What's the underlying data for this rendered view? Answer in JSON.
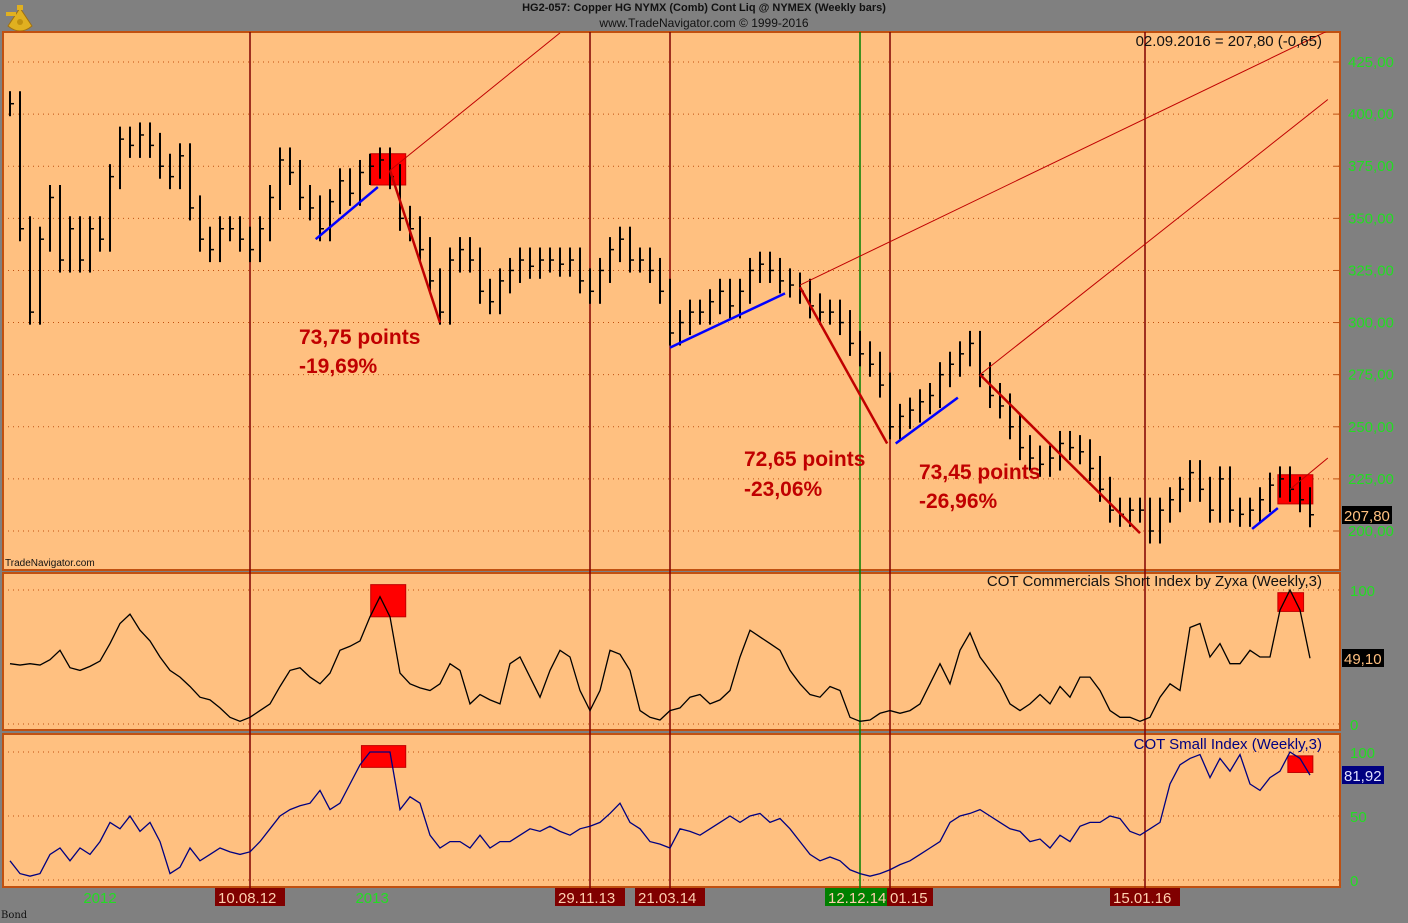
{
  "header": {
    "title": "HG2-057:  Copper HG NYMX (Comb) Cont Liq @ NYMEX  (Weekly bars)",
    "subtitle": "www.TradeNavigator.com © 1999-2016",
    "last_quote": "02.09.2016 = 207,80 (-0,65)",
    "watermark": "TradeNavigator.com",
    "footer": "Bond"
  },
  "colors": {
    "background": "#808080",
    "plot": "#FFC080",
    "frame": "#C05010",
    "axis_text": "#22DD22",
    "annotation": "#C00000",
    "vline": "#800000",
    "vline_green": "#008000",
    "trend_up": "#0000FF",
    "trend_down": "#C00000",
    "cot_small": "#000080"
  },
  "chart_data": [
    {
      "type": "ohlc-bar",
      "panel": "price",
      "last_bar_date": "02.09.2016",
      "bar_interval": "biweekly sample of weekly bars",
      "closes": [
        405,
        345,
        305,
        340,
        360,
        330,
        345,
        330,
        345,
        340,
        370,
        388,
        385,
        390,
        385,
        375,
        370,
        380,
        355,
        340,
        335,
        345,
        345,
        340,
        335,
        345,
        360,
        378,
        372,
        360,
        355,
        345,
        358,
        368,
        362,
        372,
        375,
        378,
        370,
        350,
        345,
        335,
        320,
        305,
        330,
        335,
        330,
        315,
        310,
        320,
        325,
        330,
        327,
        330,
        330,
        328,
        330,
        320,
        315,
        325,
        335,
        340,
        330,
        330,
        325,
        315,
        295,
        300,
        305,
        305,
        310,
        315,
        308,
        315,
        325,
        328,
        325,
        320,
        318,
        315,
        308,
        305,
        305,
        300,
        290,
        285,
        280,
        270,
        250,
        255,
        258,
        262,
        265,
        275,
        280,
        285,
        290,
        275,
        265,
        260,
        250,
        240,
        235,
        232,
        235,
        242,
        240,
        238,
        230,
        220,
        210,
        208,
        210,
        210,
        200,
        210,
        215,
        220,
        228,
        220,
        210,
        225,
        210,
        208,
        210,
        215,
        222,
        225,
        220,
        215,
        207.8
      ],
      "ylim": [
        190,
        440
      ],
      "yticks": [
        "200,00",
        "225,00",
        "250,00",
        "275,00",
        "300,00",
        "325,00",
        "350,00",
        "375,00",
        "400,00",
        "425,00"
      ],
      "last_value_label": "207,80",
      "annotations": [
        {
          "line1": "73,75 points",
          "line2": "-19,69%"
        },
        {
          "line1": "72,65 points",
          "line2": "-23,06%"
        },
        {
          "line1": "73,45 points",
          "line2": "-26,96%"
        }
      ],
      "trendlines": [
        {
          "kind": "up",
          "from": [
            "2012-11-10",
            340
          ],
          "to": [
            "2013-02-05",
            365
          ]
        },
        {
          "kind": "down",
          "from": [
            "2013-02-22",
            373
          ],
          "to": [
            "2013-05-03",
            300
          ]
        },
        {
          "kind": "thin",
          "from": [
            "2013-02-22",
            373
          ],
          "to": [
            "2013-10-18",
            439
          ]
        },
        {
          "kind": "up",
          "from": [
            "2014-03-21",
            288
          ],
          "to": [
            "2014-08-29",
            314
          ]
        },
        {
          "kind": "down",
          "from": [
            "2014-09-19",
            317
          ],
          "to": [
            "2015-01-19",
            242
          ]
        },
        {
          "kind": "thin",
          "from": [
            "2014-09-19",
            318
          ],
          "to": [
            "2016-09-27",
            440
          ]
        },
        {
          "kind": "up",
          "from": [
            "2015-01-31",
            242
          ],
          "to": [
            "2015-04-28",
            264
          ]
        },
        {
          "kind": "down",
          "from": [
            "2015-05-29",
            275
          ],
          "to": [
            "2016-01-08",
            199
          ]
        },
        {
          "kind": "thin",
          "from": [
            "2015-05-29",
            275
          ],
          "to": [
            "2016-09-27",
            407
          ]
        },
        {
          "kind": "up",
          "from": [
            "2016-06-13",
            201
          ],
          "to": [
            "2016-07-19",
            211
          ]
        },
        {
          "kind": "thin",
          "from": [
            "2016-08-05",
            220
          ],
          "to": [
            "2016-09-27",
            235
          ]
        }
      ],
      "markers": [
        {
          "from": "2013-01-26",
          "to": "2013-03-16",
          "low": 366,
          "high": 381
        },
        {
          "from": "2016-07-19",
          "to": "2016-09-06",
          "low": 213,
          "high": 227
        }
      ]
    },
    {
      "type": "line",
      "panel": "cot-commercials",
      "title": "COT Commercials Short Index by Zyxa (Weekly,3)",
      "values": [
        45,
        44,
        45,
        44,
        48,
        55,
        42,
        40,
        43,
        47,
        60,
        75,
        82,
        70,
        62,
        50,
        40,
        35,
        28,
        20,
        18,
        12,
        5,
        2,
        5,
        10,
        15,
        28,
        40,
        42,
        35,
        30,
        38,
        55,
        58,
        62,
        80,
        95,
        80,
        38,
        30,
        27,
        25,
        30,
        45,
        40,
        15,
        22,
        18,
        15,
        45,
        50,
        35,
        20,
        40,
        55,
        50,
        25,
        10,
        25,
        55,
        52,
        40,
        10,
        5,
        3,
        10,
        12,
        20,
        22,
        15,
        18,
        25,
        50,
        70,
        65,
        60,
        55,
        40,
        30,
        22,
        20,
        28,
        25,
        5,
        2,
        3,
        8,
        10,
        8,
        10,
        15,
        30,
        45,
        30,
        55,
        68,
        50,
        40,
        30,
        15,
        10,
        15,
        22,
        15,
        28,
        20,
        35,
        35,
        25,
        10,
        5,
        5,
        2,
        5,
        20,
        30,
        25,
        72,
        75,
        50,
        60,
        45,
        45,
        55,
        50,
        50,
        85,
        100,
        85,
        49.1
      ],
      "ylim": [
        0,
        100
      ],
      "yticks": [
        "0",
        "100"
      ],
      "last_value_label": "49,10",
      "markers": [
        {
          "from": "2013-01-26",
          "to": "2013-03-16",
          "low": 80,
          "high": 104
        },
        {
          "from": "2016-07-19",
          "to": "2016-08-24",
          "low": 84,
          "high": 98
        }
      ]
    },
    {
      "type": "line",
      "panel": "cot-small",
      "title": "COT Small Index (Weekly,3)",
      "values": [
        15,
        5,
        3,
        5,
        20,
        25,
        15,
        25,
        20,
        30,
        45,
        40,
        50,
        38,
        45,
        30,
        5,
        10,
        25,
        15,
        20,
        25,
        22,
        20,
        22,
        30,
        40,
        50,
        55,
        58,
        60,
        70,
        55,
        60,
        75,
        90,
        100,
        100,
        100,
        55,
        65,
        60,
        35,
        25,
        30,
        30,
        25,
        35,
        25,
        30,
        30,
        35,
        40,
        38,
        42,
        38,
        35,
        40,
        42,
        45,
        52,
        60,
        45,
        40,
        30,
        28,
        25,
        40,
        38,
        35,
        40,
        45,
        50,
        45,
        50,
        52,
        45,
        48,
        40,
        30,
        20,
        15,
        18,
        15,
        8,
        5,
        3,
        5,
        8,
        12,
        15,
        20,
        25,
        30,
        45,
        50,
        52,
        55,
        50,
        45,
        40,
        38,
        30,
        32,
        25,
        35,
        30,
        42,
        45,
        45,
        50,
        48,
        38,
        35,
        40,
        45,
        75,
        90,
        95,
        98,
        80,
        95,
        85,
        98,
        75,
        70,
        80,
        85,
        100,
        95,
        81.92
      ],
      "ylim": [
        0,
        100
      ],
      "yticks": [
        "0",
        "50",
        "100"
      ],
      "last_value_label": "81,92",
      "markers": [
        {
          "from": "2013-01-13",
          "to": "2013-03-16",
          "low": 88,
          "high": 105
        },
        {
          "from": "2016-08-02",
          "to": "2016-09-06",
          "low": 84,
          "high": 97
        }
      ]
    }
  ],
  "x_axis": {
    "year_labels": [
      {
        "label": "2012",
        "date": "2012-01-13"
      },
      {
        "label": "2013",
        "date": "2013-01-28"
      }
    ],
    "event_lines": [
      {
        "label": "10.08.12",
        "date": "2012-08-10",
        "color": "red"
      },
      {
        "label": "29.11.13",
        "date": "2013-11-29",
        "color": "red"
      },
      {
        "label": "21.03.14",
        "date": "2014-03-21",
        "color": "red"
      },
      {
        "label": "12.12.14",
        "date": "2014-12-12",
        "color": "green"
      },
      {
        "label": "01.15",
        "date": "2015-01-23",
        "color": "red"
      },
      {
        "label": "15.01.16",
        "date": "2016-01-15",
        "color": "red"
      }
    ]
  }
}
